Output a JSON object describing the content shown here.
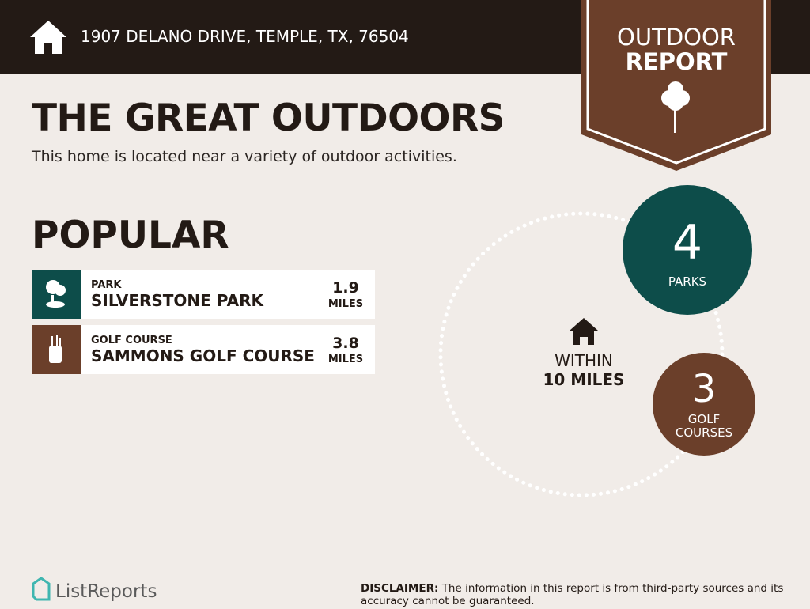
{
  "header": {
    "address": "1907 DELANO DRIVE, TEMPLE, TX, 76504"
  },
  "badge": {
    "line1": "OUTDOOR",
    "line2": "REPORT"
  },
  "title": "THE GREAT OUTDOORS",
  "subtitle": "This home is located near a variety of outdoor activities.",
  "popular": {
    "heading": "POPULAR",
    "items": [
      {
        "category": "PARK",
        "name": "SILVERSTONE PARK",
        "distance": 1.9,
        "unit": "MILES"
      },
      {
        "category": "GOLF COURSE",
        "name": "SAMMONS GOLF COURSE",
        "distance": 3.8,
        "unit": "MILES"
      }
    ]
  },
  "summary": {
    "within_line1": "WITHIN",
    "within_line2": "10 MILES",
    "parks": {
      "count": 4,
      "label": "PARKS"
    },
    "golf": {
      "count": 3,
      "label": "GOLF COURSES"
    }
  },
  "footer": {
    "brand": "ListReports",
    "disclaimer_label": "DISCLAIMER:",
    "disclaimer_text": "The information in this report is from third-party sources and its accuracy cannot be guaranteed."
  }
}
